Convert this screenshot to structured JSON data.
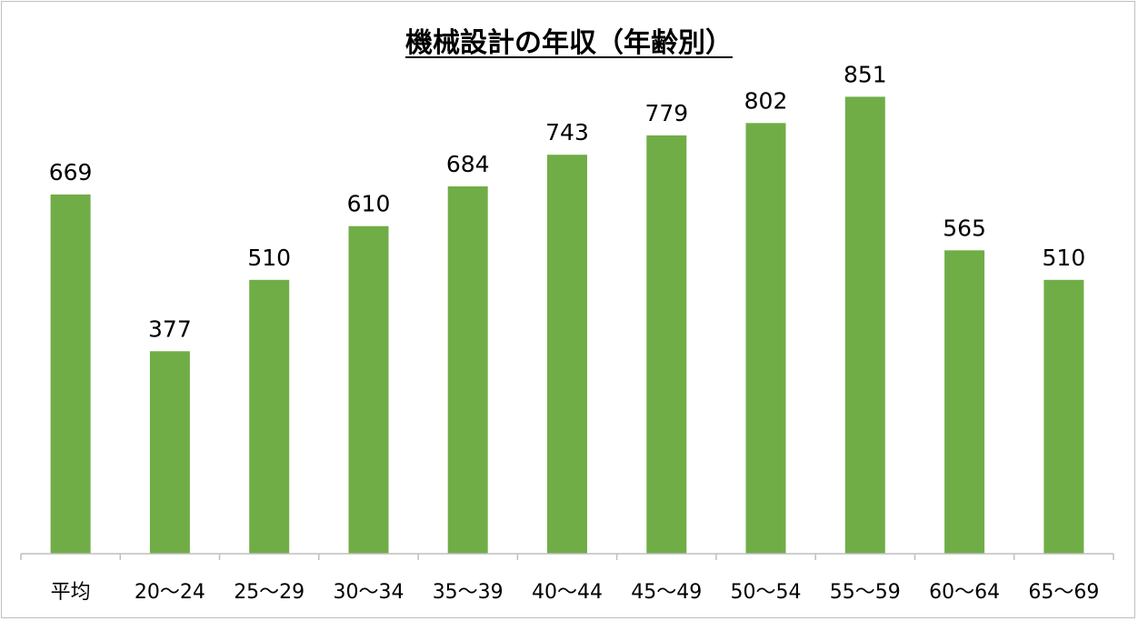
{
  "chart_data": {
    "type": "bar",
    "title": "機械設計の年収（年齢別）",
    "categories": [
      "平均",
      "20〜24",
      "25〜29",
      "30〜34",
      "35〜39",
      "40〜44",
      "45〜49",
      "50〜54",
      "55〜59",
      "60〜64",
      "65〜69"
    ],
    "values": [
      669,
      377,
      510,
      610,
      684,
      743,
      779,
      802,
      851,
      565,
      510
    ],
    "xlabel": "",
    "ylabel": "",
    "ylim": [
      0,
      960
    ],
    "grid": false,
    "legend": "none",
    "data_labels": true,
    "bar_color": "#70ad47"
  }
}
